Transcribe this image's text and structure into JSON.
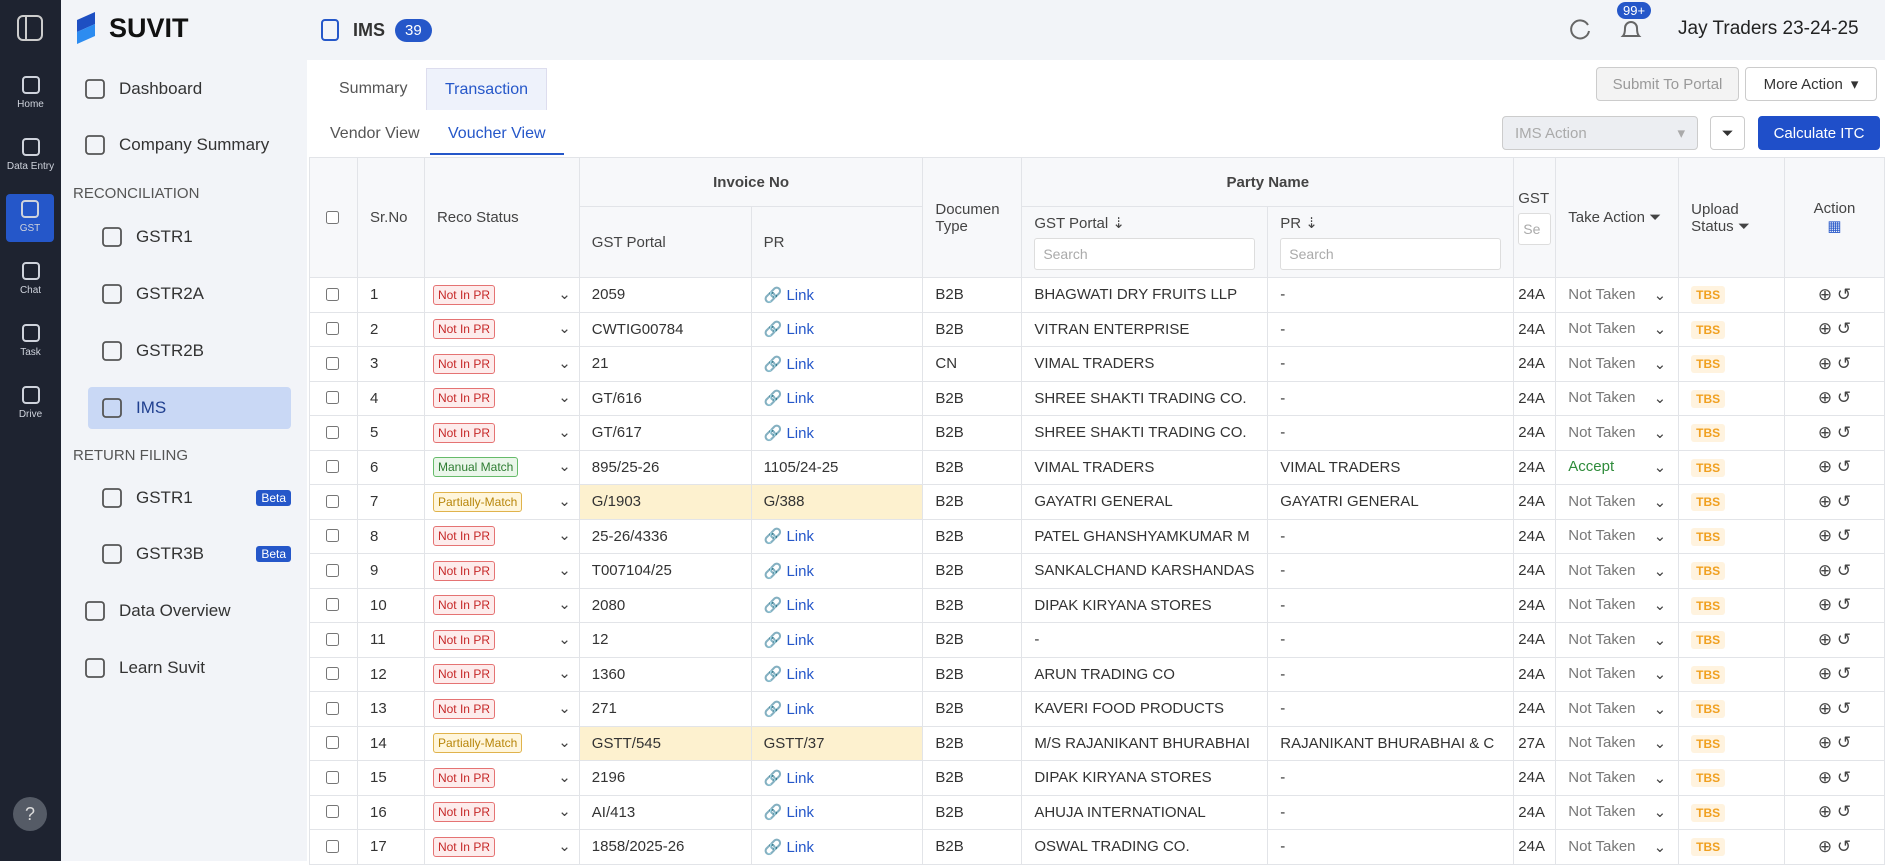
{
  "rail": [
    "Home",
    "Data Entry",
    "GST",
    "Chat",
    "Task",
    "Drive"
  ],
  "brand": "SUVIT",
  "sidebar": {
    "items": [
      "Dashboard",
      "Company Summary"
    ],
    "section1": "RECONCILIATION",
    "reco": [
      "GSTR1",
      "GSTR2A",
      "GSTR2B",
      "IMS"
    ],
    "section2": "RETURN FILING",
    "filing": [
      {
        "label": "GSTR1",
        "badge": "Beta"
      },
      {
        "label": "GSTR3B",
        "badge": "Beta"
      }
    ],
    "bottom": [
      "Data Overview",
      "Learn Suvit"
    ]
  },
  "header": {
    "title": "IMS",
    "count": "39",
    "notifications": "99+",
    "company": "Jay Traders 23-24-25"
  },
  "tabs": [
    "Summary",
    "Transaction"
  ],
  "buttons": {
    "submit": "Submit To Portal",
    "more": "More Action",
    "ims": "IMS Action",
    "calc": "Calculate ITC"
  },
  "subtabs": [
    "Vendor View",
    "Voucher View"
  ],
  "table": {
    "head": {
      "sr": "Sr.No",
      "reco": "Reco Status",
      "invoice": "Invoice No",
      "inv_gst": "GST Portal",
      "inv_pr": "PR",
      "doc": "Documen Type",
      "party": "Party Name",
      "party_gst": "GST Portal",
      "party_pr": "PR",
      "gstin": "GST",
      "take": "Take Action",
      "upload": "Upload Status",
      "action": "Action",
      "search1": "Search",
      "search2": "Search",
      "search3": "Se"
    },
    "rows": [
      [
        "1",
        "Not In PR",
        "2059",
        "Link",
        "B2B",
        "BHAGWATI DRY FRUITS LLP",
        "-",
        "24A",
        "Not Taken",
        "TBS"
      ],
      [
        "2",
        "Not In PR",
        "CWTIG00784",
        "Link",
        "B2B",
        "VITRAN ENTERPRISE",
        "-",
        "24A",
        "Not Taken",
        "TBS"
      ],
      [
        "3",
        "Not In PR",
        "21",
        "Link",
        "CN",
        "VIMAL TRADERS",
        "-",
        "24A",
        "Not Taken",
        "TBS"
      ],
      [
        "4",
        "Not In PR",
        "GT/616",
        "Link",
        "B2B",
        "SHREE SHAKTI TRADING CO.",
        "-",
        "24A",
        "Not Taken",
        "TBS"
      ],
      [
        "5",
        "Not In PR",
        "GT/617",
        "Link",
        "B2B",
        "SHREE SHAKTI TRADING CO.",
        "-",
        "24A",
        "Not Taken",
        "TBS"
      ],
      [
        "6",
        "Manual Match",
        "895/25-26",
        "1105/24-25",
        "B2B",
        "VIMAL TRADERS",
        "VIMAL TRADERS",
        "24A",
        "Accept",
        "TBS"
      ],
      [
        "7",
        "Partially-Match",
        "G/1903",
        "G/388",
        "B2B",
        "GAYATRI GENERAL",
        "GAYATRI GENERAL",
        "24A",
        "Not Taken",
        "TBS"
      ],
      [
        "8",
        "Not In PR",
        "25-26/4336",
        "Link",
        "B2B",
        "PATEL GHANSHYAMKUMAR M",
        "-",
        "24A",
        "Not Taken",
        "TBS"
      ],
      [
        "9",
        "Not In PR",
        "T007104/25",
        "Link",
        "B2B",
        "SANKALCHAND KARSHANDAS",
        "-",
        "24A",
        "Not Taken",
        "TBS"
      ],
      [
        "10",
        "Not In PR",
        "2080",
        "Link",
        "B2B",
        "DIPAK KIRYANA STORES",
        "-",
        "24A",
        "Not Taken",
        "TBS"
      ],
      [
        "11",
        "Not In PR",
        "12",
        "Link",
        "B2B",
        "-",
        "-",
        "24A",
        "Not Taken",
        "TBS"
      ],
      [
        "12",
        "Not In PR",
        "1360",
        "Link",
        "B2B",
        "ARUN TRADING CO",
        "-",
        "24A",
        "Not Taken",
        "TBS"
      ],
      [
        "13",
        "Not In PR",
        "271",
        "Link",
        "B2B",
        "KAVERI FOOD PRODUCTS",
        "-",
        "24A",
        "Not Taken",
        "TBS"
      ],
      [
        "14",
        "Partially-Match",
        "GSTT/545",
        "GSTT/37",
        "B2B",
        "M/S RAJANIKANT BHURABHAI",
        "RAJANIKANT BHURABHAI & C",
        "27A",
        "Not Taken",
        "TBS"
      ],
      [
        "15",
        "Not In PR",
        "2196",
        "Link",
        "B2B",
        "DIPAK KIRYANA STORES",
        "-",
        "24A",
        "Not Taken",
        "TBS"
      ],
      [
        "16",
        "Not In PR",
        "AI/413",
        "Link",
        "B2B",
        "AHUJA INTERNATIONAL",
        "-",
        "24A",
        "Not Taken",
        "TBS"
      ],
      [
        "17",
        "Not In PR",
        "1858/2025-26",
        "Link",
        "B2B",
        "OSWAL TRADING CO.",
        "-",
        "24A",
        "Not Taken",
        "TBS"
      ]
    ]
  }
}
